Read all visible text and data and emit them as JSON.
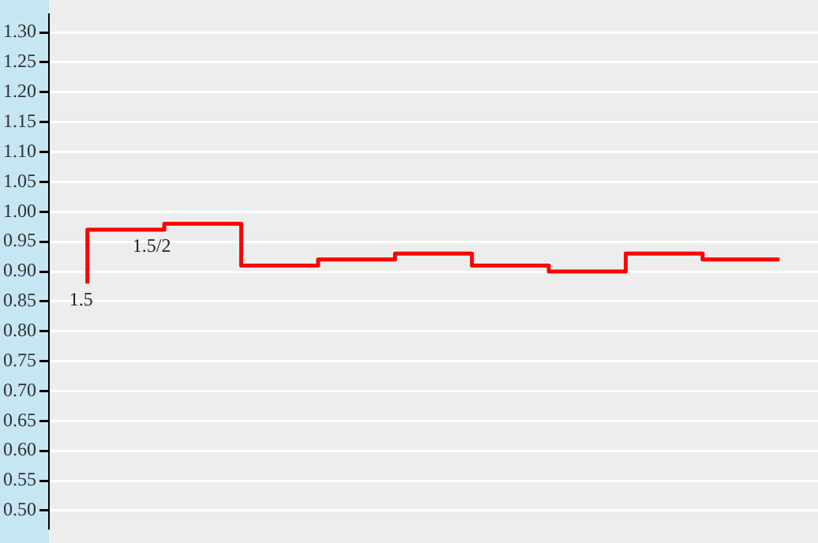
{
  "chart_data": {
    "type": "step",
    "categories": [
      null,
      null,
      null,
      null,
      null,
      null,
      null,
      null,
      null,
      null
    ],
    "series": [
      {
        "color": "#ff0000",
        "values": [
          0.88,
          0.97,
          0.98,
          0.91,
          0.92,
          0.93,
          0.91,
          0.9,
          0.93,
          0.92
        ]
      }
    ],
    "annotations": [
      {
        "text": "1.5",
        "y": 0.88
      },
      {
        "text": "1.5/2",
        "y": 0.97
      }
    ],
    "ylim": [
      0.47,
      1.33
    ],
    "yticks": [
      {
        "value": 0.5,
        "label": "0.50"
      },
      {
        "value": 0.55,
        "label": "0.55"
      },
      {
        "value": 0.6,
        "label": "0.60"
      },
      {
        "value": 0.65,
        "label": "0.65"
      },
      {
        "value": 0.7,
        "label": "0.70"
      },
      {
        "value": 0.75,
        "label": "0.75"
      },
      {
        "value": 0.8,
        "label": "0.80"
      },
      {
        "value": 0.85,
        "label": "0.85"
      },
      {
        "value": 0.9,
        "label": "0.90"
      },
      {
        "value": 0.95,
        "label": "0.95"
      },
      {
        "value": 1.0,
        "label": "1.00"
      },
      {
        "value": 1.05,
        "label": "1.05"
      },
      {
        "value": 1.1,
        "label": "1.10"
      },
      {
        "value": 1.15,
        "label": "1.15"
      },
      {
        "value": 1.2,
        "label": "1.20"
      },
      {
        "value": 1.25,
        "label": "1.25"
      },
      {
        "value": 1.3,
        "label": "1.30"
      }
    ],
    "grid": "y",
    "legend": false,
    "tick_labels": "y"
  }
}
